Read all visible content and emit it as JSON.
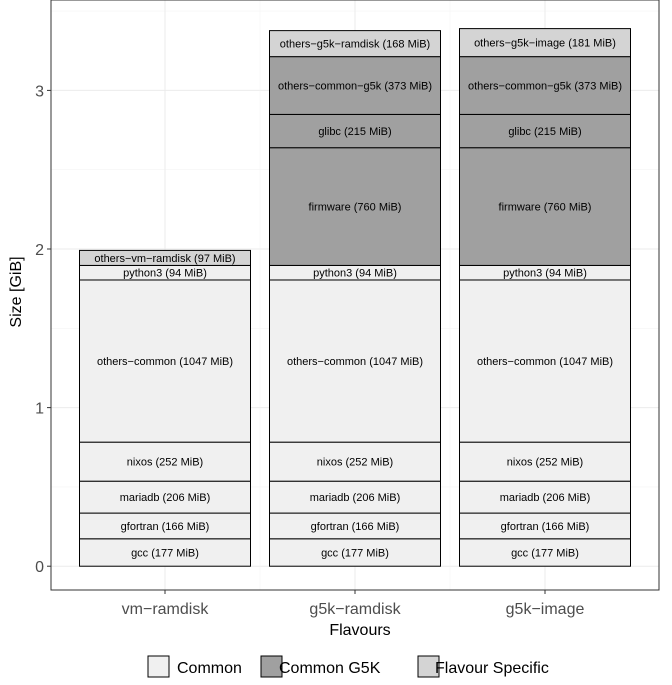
{
  "chart_data": {
    "type": "bar",
    "stacked": true,
    "xlabel": "Flavours",
    "ylabel": "Size [GiB]",
    "ylim": [
      -0.15,
      3.57
    ],
    "yticks": [
      0,
      1,
      2,
      3
    ],
    "ytick_labels": [
      "0",
      "1",
      "2",
      "3"
    ],
    "grid": true,
    "legend_position": "bottom",
    "categories": [
      "vm−ramdisk",
      "g5k−ramdisk",
      "g5k−image"
    ],
    "legend": [
      {
        "name": "Common",
        "color": "#f0f0f0"
      },
      {
        "name": "Common G5K",
        "color": "#a0a0a0"
      },
      {
        "name": "Flavour Specific",
        "color": "#d4d4d4"
      }
    ],
    "stacks": [
      [
        {
          "label": "gcc (177 MiB)",
          "mib": 177,
          "group": "Common"
        },
        {
          "label": "gfortran (166 MiB)",
          "mib": 166,
          "group": "Common"
        },
        {
          "label": "mariadb (206 MiB)",
          "mib": 206,
          "group": "Common"
        },
        {
          "label": "nixos (252 MiB)",
          "mib": 252,
          "group": "Common"
        },
        {
          "label": "others−common (1047 MiB)",
          "mib": 1047,
          "group": "Common"
        },
        {
          "label": "python3 (94 MiB)",
          "mib": 94,
          "group": "Common"
        },
        {
          "label": "others−vm−ramdisk (97 MiB)",
          "mib": 97,
          "group": "Flavour Specific"
        }
      ],
      [
        {
          "label": "gcc (177 MiB)",
          "mib": 177,
          "group": "Common"
        },
        {
          "label": "gfortran (166 MiB)",
          "mib": 166,
          "group": "Common"
        },
        {
          "label": "mariadb (206 MiB)",
          "mib": 206,
          "group": "Common"
        },
        {
          "label": "nixos (252 MiB)",
          "mib": 252,
          "group": "Common"
        },
        {
          "label": "others−common (1047 MiB)",
          "mib": 1047,
          "group": "Common"
        },
        {
          "label": "python3 (94 MiB)",
          "mib": 94,
          "group": "Common"
        },
        {
          "label": "firmware (760 MiB)",
          "mib": 760,
          "group": "Common G5K"
        },
        {
          "label": "glibc (215 MiB)",
          "mib": 215,
          "group": "Common G5K"
        },
        {
          "label": "others−common−g5k (373 MiB)",
          "mib": 373,
          "group": "Common G5K"
        },
        {
          "label": "others−g5k−ramdisk (168 MiB)",
          "mib": 168,
          "group": "Flavour Specific"
        }
      ],
      [
        {
          "label": "gcc (177 MiB)",
          "mib": 177,
          "group": "Common"
        },
        {
          "label": "gfortran (166 MiB)",
          "mib": 166,
          "group": "Common"
        },
        {
          "label": "mariadb (206 MiB)",
          "mib": 206,
          "group": "Common"
        },
        {
          "label": "nixos (252 MiB)",
          "mib": 252,
          "group": "Common"
        },
        {
          "label": "others−common (1047 MiB)",
          "mib": 1047,
          "group": "Common"
        },
        {
          "label": "python3 (94 MiB)",
          "mib": 94,
          "group": "Common"
        },
        {
          "label": "firmware (760 MiB)",
          "mib": 760,
          "group": "Common G5K"
        },
        {
          "label": "glibc (215 MiB)",
          "mib": 215,
          "group": "Common G5K"
        },
        {
          "label": "others−common−g5k (373 MiB)",
          "mib": 373,
          "group": "Common G5K"
        },
        {
          "label": "others−g5k−image (181 MiB)",
          "mib": 181,
          "group": "Flavour Specific"
        }
      ]
    ]
  }
}
